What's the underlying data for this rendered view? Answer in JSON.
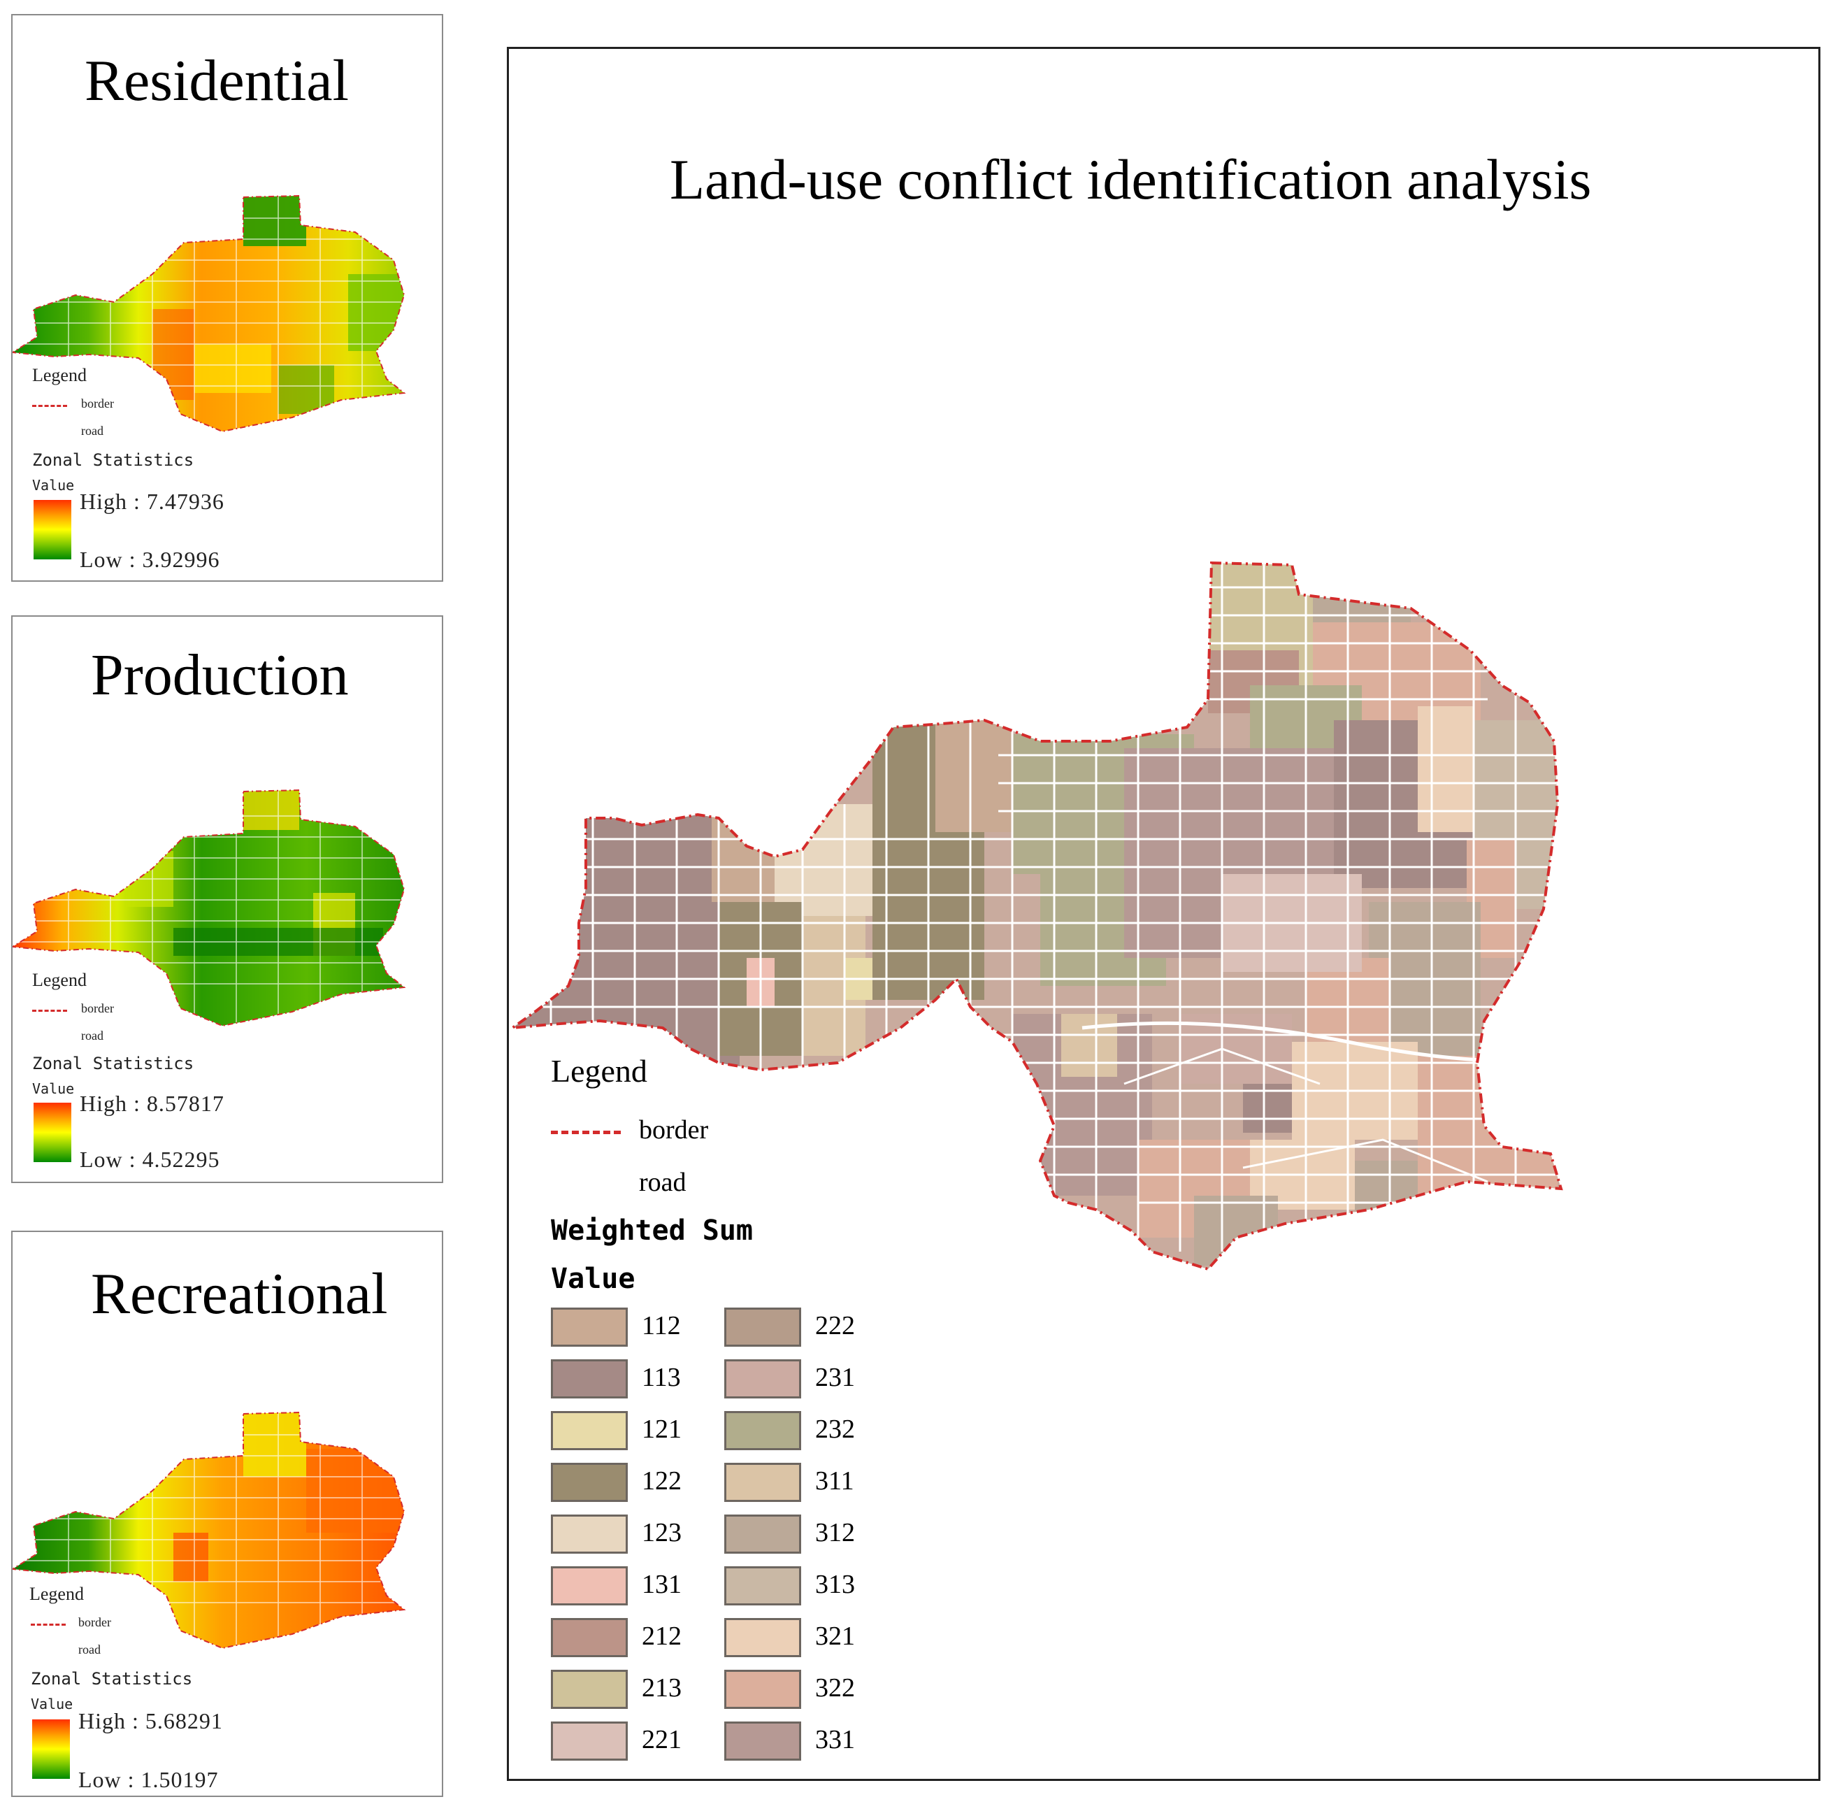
{
  "panels": [
    {
      "id": "residential",
      "title": "Residential",
      "legend": {
        "title": "Legend",
        "border_label": "border",
        "road_label": "road",
        "stats_title": "Zonal Statistics",
        "value_label": "Value",
        "high": "High : 7.47936",
        "low": "Low : 3.92996"
      }
    },
    {
      "id": "production",
      "title": "Production",
      "legend": {
        "title": "Legend",
        "border_label": "border",
        "road_label": "road",
        "stats_title": "Zonal Statistics",
        "value_label": "Value",
        "high": "High : 8.57817",
        "low": "Low : 4.52295"
      }
    },
    {
      "id": "recreational",
      "title": "Recreational",
      "legend": {
        "title": "Legend",
        "border_label": "border",
        "road_label": "road",
        "stats_title": "Zonal Statistics",
        "value_label": "Value",
        "high": "High : 5.68291",
        "low": "Low : 1.50197"
      }
    }
  ],
  "main": {
    "title": "Land-use conflict identification analysis",
    "legend": {
      "title": "Legend",
      "border_label": "border",
      "road_label": "road",
      "sum_title": "Weighted Sum",
      "value_label": "Value",
      "classes": [
        {
          "label": "112",
          "color": "#c9aa93"
        },
        {
          "label": "113",
          "color": "#a58a86"
        },
        {
          "label": "121",
          "color": "#e8dba9"
        },
        {
          "label": "122",
          "color": "#9a8c6f"
        },
        {
          "label": "123",
          "color": "#e8d7c0"
        },
        {
          "label": "131",
          "color": "#efbfb3"
        },
        {
          "label": "212",
          "color": "#bc9488"
        },
        {
          "label": "213",
          "color": "#cfc29a"
        },
        {
          "label": "221",
          "color": "#dbc0b8"
        },
        {
          "label": "222",
          "color": "#b59c8a"
        },
        {
          "label": "231",
          "color": "#ccaba2"
        },
        {
          "label": "232",
          "color": "#b1ad8c"
        },
        {
          "label": "311",
          "color": "#dbc4a6"
        },
        {
          "label": "312",
          "color": "#bba998"
        },
        {
          "label": "313",
          "color": "#c9b8a5"
        },
        {
          "label": "321",
          "color": "#ecd0b7"
        },
        {
          "label": "322",
          "color": "#dcaf9c"
        },
        {
          "label": "331",
          "color": "#b69994"
        }
      ]
    }
  },
  "colors": {
    "border": "#d42b2b",
    "road": "#ffffff",
    "ramp_high": "#ff3000",
    "ramp_mid": "#ffff00",
    "ramp_low": "#008a00"
  }
}
